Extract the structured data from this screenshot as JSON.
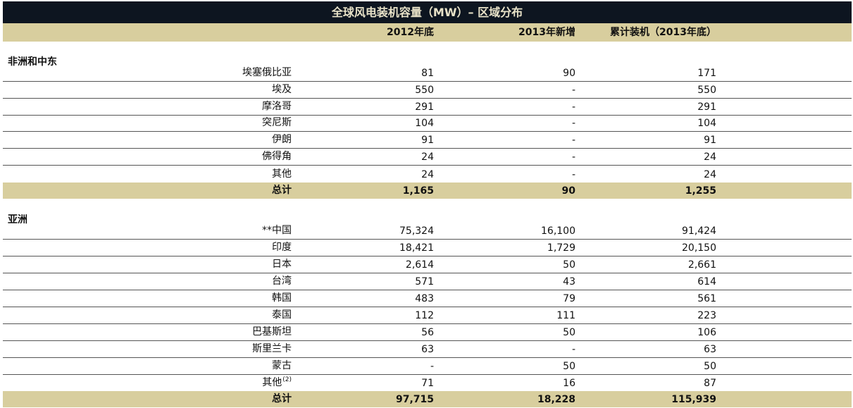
{
  "title": "全球风电装机容量（MW）– 区域分布",
  "columns": {
    "end_2012": "2012年底",
    "new_2013": "2013年新增",
    "cumulative": "累计装机（2013年底）"
  },
  "sections": [
    {
      "name": "非洲和中东",
      "rows": [
        {
          "name": "埃塞俄比亚",
          "end_2012": "81",
          "new_2013": "90",
          "cumulative": "171"
        },
        {
          "name": "埃及",
          "end_2012": "550",
          "new_2013": "-",
          "cumulative": "550"
        },
        {
          "name": "摩洛哥",
          "end_2012": "291",
          "new_2013": "-",
          "cumulative": "291"
        },
        {
          "name": "突尼斯",
          "end_2012": "104",
          "new_2013": "-",
          "cumulative": "104"
        },
        {
          "name": "伊朗",
          "end_2012": "91",
          "new_2013": "-",
          "cumulative": "91"
        },
        {
          "name": "佛得角",
          "end_2012": "24",
          "new_2013": "-",
          "cumulative": "24"
        },
        {
          "name": "其他",
          "end_2012": "24",
          "new_2013": "-",
          "cumulative": "24"
        }
      ],
      "total": {
        "name": "总计",
        "end_2012": "1,165",
        "new_2013": "90",
        "cumulative": "1,255"
      }
    },
    {
      "name": "亚洲",
      "rows": [
        {
          "name": "**中国",
          "end_2012": "75,324",
          "new_2013": "16,100",
          "cumulative": "91,424"
        },
        {
          "name": "印度",
          "end_2012": "18,421",
          "new_2013": "1,729",
          "cumulative": "20,150"
        },
        {
          "name": "日本",
          "end_2012": "2,614",
          "new_2013": "50",
          "cumulative": "2,661"
        },
        {
          "name": "台湾",
          "end_2012": "571",
          "new_2013": "43",
          "cumulative": "614"
        },
        {
          "name": "韩国",
          "end_2012": "483",
          "new_2013": "79",
          "cumulative": "561"
        },
        {
          "name": "泰国",
          "end_2012": "112",
          "new_2013": "111",
          "cumulative": "223"
        },
        {
          "name": "巴基斯坦",
          "end_2012": "56",
          "new_2013": "50",
          "cumulative": "106"
        },
        {
          "name": "斯里兰卡",
          "end_2012": "63",
          "new_2013": "-",
          "cumulative": "63"
        },
        {
          "name": "蒙古",
          "end_2012": "-",
          "new_2013": "50",
          "cumulative": "50"
        },
        {
          "name": "其他",
          "note": "(2)",
          "end_2012": "71",
          "new_2013": "16",
          "cumulative": "87"
        }
      ],
      "total": {
        "name": "总计",
        "end_2012": "97,715",
        "new_2013": "18,228",
        "cumulative": "115,939"
      }
    }
  ]
}
